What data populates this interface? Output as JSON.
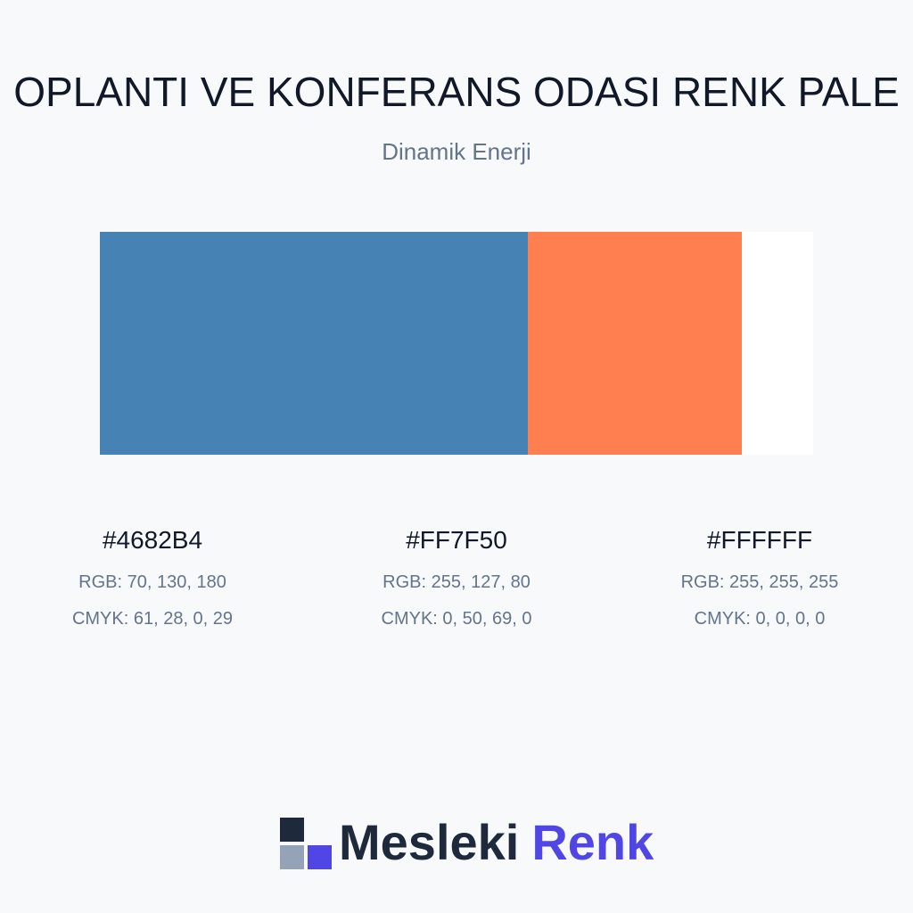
{
  "header": {
    "title": "OPLANTI VE KONFERANS ODASI RENK PALE",
    "subtitle": "Dinamik Enerji"
  },
  "palette": [
    {
      "hex": "#4682B4",
      "rgb": "RGB: 70, 130, 180",
      "cmyk": "CMYK: 61, 28, 0, 29",
      "share": 60
    },
    {
      "hex": "#FF7F50",
      "rgb": "RGB: 255, 127, 80",
      "cmyk": "CMYK: 0, 50, 69, 0",
      "share": 30
    },
    {
      "hex": "#FFFFFF",
      "rgb": "RGB: 255, 255, 255",
      "cmyk": "CMYK: 0, 0, 0, 0",
      "share": 10
    }
  ],
  "logo": {
    "word1": "Mesleki",
    "word2": "Renk"
  }
}
